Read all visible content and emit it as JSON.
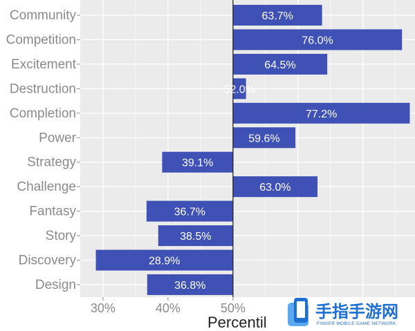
{
  "chart_data": {
    "type": "bar",
    "orientation": "horizontal",
    "categories": [
      "Community",
      "Competition",
      "Excitement",
      "Destruction",
      "Completion",
      "Power",
      "Strategy",
      "Challenge",
      "Fantasy",
      "Story",
      "Discovery",
      "Design"
    ],
    "values": [
      63.7,
      76.0,
      64.5,
      52.0,
      77.2,
      59.6,
      39.1,
      63.0,
      36.7,
      38.5,
      28.9,
      36.8
    ],
    "value_labels": [
      "63.7%",
      "76.0%",
      "64.5%",
      "52.0%",
      "77.2%",
      "59.6%",
      "39.1%",
      "63.0%",
      "36.7%",
      "38.5%",
      "28.9%",
      "36.8%"
    ],
    "baseline": 50,
    "xlim": [
      26.5,
      78
    ],
    "x_ticks": [
      30,
      40,
      50
    ],
    "x_tick_labels": [
      "30%",
      "40%",
      "50%"
    ],
    "xlabel": "Percentil",
    "ylabel": "",
    "title": "",
    "grid": true,
    "colors": {
      "bar": "#3f51b5",
      "panel": "#ebebeb",
      "grid": "#ffffff",
      "baseline": "#222222"
    }
  },
  "watermark": {
    "cn_text": "手指手游网",
    "en_text": "FINGER MOBILE GAME NETWORK",
    "logo_icon": "phone-logo-icon",
    "color": "#1f6fd0"
  }
}
